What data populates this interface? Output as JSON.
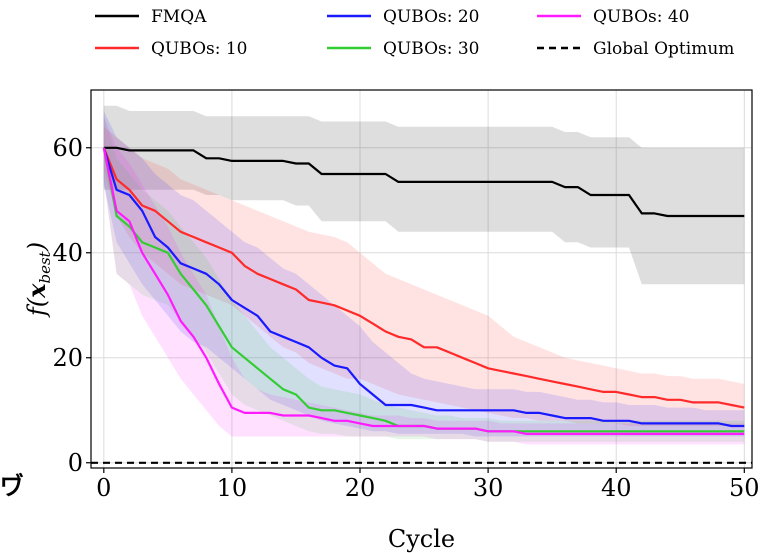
{
  "chart_data": {
    "type": "line",
    "xlabel": "Cycle",
    "ylabel": "f(x_best)",
    "xlim": [
      -1,
      50.6
    ],
    "ylim": [
      -1,
      71
    ],
    "xticks": [
      0,
      10,
      20,
      30,
      40,
      50
    ],
    "yticks": [
      0,
      20,
      40,
      60
    ],
    "grid": true,
    "legend_position": "top",
    "series": [
      {
        "name": "FMQA",
        "color": "#000000",
        "linestyle": "solid",
        "x": [
          0,
          1,
          2,
          3,
          4,
          5,
          6,
          7,
          8,
          9,
          10,
          11,
          12,
          13,
          14,
          15,
          16,
          17,
          18,
          19,
          20,
          21,
          22,
          23,
          24,
          25,
          26,
          27,
          28,
          29,
          30,
          31,
          32,
          33,
          34,
          35,
          36,
          37,
          38,
          39,
          40,
          41,
          42,
          43,
          44,
          45,
          46,
          47,
          48,
          49,
          50
        ],
        "y": [
          60,
          60,
          59.5,
          59.5,
          59.5,
          59.5,
          59.5,
          59.5,
          58,
          58,
          57.5,
          57.5,
          57.5,
          57.5,
          57.5,
          57,
          57,
          55,
          55,
          55,
          55,
          55,
          55,
          53.5,
          53.5,
          53.5,
          53.5,
          53.5,
          53.5,
          53.5,
          53.5,
          53.5,
          53.5,
          53.5,
          53.5,
          53.5,
          52.5,
          52.5,
          51,
          51,
          51,
          51,
          47.5,
          47.5,
          47,
          47,
          47,
          47,
          47,
          47,
          47
        ],
        "upper": [
          68,
          68,
          67,
          67,
          67,
          67,
          67,
          67,
          66,
          66,
          66,
          66,
          66,
          66,
          66,
          66,
          66,
          65,
          65,
          65,
          65,
          65,
          65,
          64,
          64,
          64,
          64,
          64,
          64,
          64,
          64,
          64,
          64,
          64,
          64,
          64,
          63,
          63,
          62,
          62,
          62,
          62,
          60,
          60,
          60,
          60,
          60,
          60,
          60,
          60,
          60
        ],
        "lower": [
          52,
          52,
          52,
          52,
          52,
          52,
          52,
          52,
          51,
          51,
          50,
          50,
          50,
          50,
          50,
          49,
          49,
          46,
          46,
          46,
          46,
          46,
          46,
          44,
          44,
          44,
          44,
          44,
          44,
          44,
          44,
          44,
          44,
          44,
          44,
          44,
          42,
          42,
          41,
          41,
          41,
          41,
          34,
          34,
          34,
          34,
          34,
          34,
          34,
          34,
          34
        ]
      },
      {
        "name": "QUBOs: 10",
        "color": "#ff2a2a",
        "linestyle": "solid",
        "x": [
          0,
          1,
          2,
          3,
          4,
          5,
          6,
          7,
          8,
          9,
          10,
          11,
          12,
          13,
          14,
          15,
          16,
          17,
          18,
          19,
          20,
          21,
          22,
          23,
          24,
          25,
          26,
          27,
          28,
          29,
          30,
          31,
          32,
          33,
          34,
          35,
          36,
          37,
          38,
          39,
          40,
          41,
          42,
          43,
          44,
          45,
          46,
          47,
          48,
          49,
          50
        ],
        "y": [
          60,
          54,
          52,
          49,
          48,
          46,
          44,
          43,
          42,
          41,
          40,
          37.5,
          36,
          35,
          34,
          33,
          31,
          30.5,
          30,
          29,
          28,
          26.5,
          25,
          24,
          23.5,
          22,
          22,
          21,
          20,
          19,
          18,
          17.5,
          17,
          16.5,
          16,
          15.5,
          15,
          14.5,
          14,
          13.5,
          13.5,
          13,
          12.5,
          12.5,
          12,
          12,
          11.5,
          11.5,
          11.5,
          11,
          10.5
        ],
        "upper": [
          64,
          62,
          60,
          58,
          57,
          56,
          54,
          53,
          52,
          51,
          50,
          49,
          48,
          47,
          46,
          45,
          44,
          43.5,
          43,
          42,
          40,
          38,
          36,
          35,
          34,
          33,
          32,
          31,
          30,
          29,
          28,
          26,
          24,
          23,
          22,
          21,
          20,
          19.5,
          19,
          18.5,
          18,
          17.5,
          17,
          17,
          16.5,
          16.5,
          16,
          16,
          16,
          15.5,
          15
        ],
        "lower": [
          56,
          47,
          43,
          40,
          38,
          36,
          34,
          33,
          32,
          31,
          30,
          28,
          26,
          24,
          22,
          21,
          19,
          18,
          17,
          16,
          16,
          15,
          14,
          13,
          12.5,
          12,
          11.5,
          11,
          10.5,
          10,
          9.5,
          9,
          8.5,
          8.5,
          8,
          8,
          8,
          7.5,
          7.5,
          7.5,
          7.5,
          7,
          7,
          7,
          7,
          7,
          7,
          7,
          7,
          7,
          7
        ]
      },
      {
        "name": "QUBOs: 20",
        "color": "#1a1aff",
        "linestyle": "solid",
        "x": [
          0,
          1,
          2,
          3,
          4,
          5,
          6,
          7,
          8,
          9,
          10,
          11,
          12,
          13,
          14,
          15,
          16,
          17,
          18,
          19,
          20,
          21,
          22,
          23,
          24,
          25,
          26,
          27,
          28,
          29,
          30,
          31,
          32,
          33,
          34,
          35,
          36,
          37,
          38,
          39,
          40,
          41,
          42,
          43,
          44,
          45,
          46,
          47,
          48,
          49,
          50
        ],
        "y": [
          60,
          52,
          51,
          48,
          43,
          41,
          38,
          37,
          36,
          34,
          31,
          29.5,
          28,
          25,
          24,
          23,
          22,
          20,
          18.5,
          18,
          15,
          13,
          11,
          11,
          11,
          10.5,
          10,
          10,
          10,
          10,
          10,
          10,
          10,
          9.5,
          9.5,
          9,
          8.5,
          8.5,
          8.5,
          8,
          8,
          8,
          7.5,
          7.5,
          7.5,
          7.5,
          7.5,
          7.5,
          7.5,
          7,
          7
        ],
        "upper": [
          67,
          62,
          60,
          58,
          55,
          53,
          51,
          50,
          48,
          46,
          44,
          42,
          41,
          39,
          37,
          36,
          34,
          32,
          30,
          28,
          26,
          23,
          21,
          19,
          17,
          16,
          15.5,
          15,
          14.5,
          14,
          14,
          14,
          14,
          13.5,
          13.5,
          13,
          12.5,
          12,
          12,
          11.5,
          11.5,
          11,
          11,
          11,
          10.5,
          10.5,
          10.5,
          10,
          10,
          10,
          10
        ],
        "lower": [
          53,
          42,
          38,
          34,
          31,
          28,
          25,
          23,
          22,
          20,
          18,
          16,
          14,
          12,
          11,
          10,
          9,
          8,
          7.5,
          7,
          6.5,
          6,
          6,
          5.5,
          5.5,
          5.5,
          5.5,
          5.5,
          5.5,
          5,
          5,
          5,
          5,
          5,
          5,
          5,
          5,
          5,
          5,
          5,
          5,
          5,
          5,
          5,
          5,
          5,
          5,
          5,
          5,
          5,
          5
        ]
      },
      {
        "name": "QUBOs: 30",
        "color": "#33cc33",
        "linestyle": "solid",
        "x": [
          0,
          1,
          2,
          3,
          4,
          5,
          6,
          7,
          8,
          9,
          10,
          11,
          12,
          13,
          14,
          15,
          16,
          17,
          18,
          19,
          20,
          21,
          22,
          23,
          24,
          25,
          26,
          27,
          28,
          29,
          30,
          31,
          32,
          33,
          34,
          35,
          36,
          37,
          38,
          39,
          40,
          41,
          42,
          43,
          44,
          45,
          46,
          47,
          48,
          49,
          50
        ],
        "y": [
          60,
          47,
          45,
          42,
          41,
          40,
          36,
          33,
          30,
          26,
          22,
          20,
          18,
          16,
          14,
          13,
          10.5,
          10,
          10,
          9.5,
          9,
          8.5,
          8,
          7,
          7,
          7,
          6.5,
          6.5,
          6.5,
          6.5,
          6,
          6,
          6,
          6,
          6,
          6,
          6,
          6,
          6,
          6,
          6,
          6,
          6,
          6,
          6,
          6,
          6,
          6,
          6,
          6,
          6
        ],
        "upper": [
          66,
          58,
          55,
          52,
          50,
          48,
          45,
          42,
          39,
          35,
          31,
          28,
          25,
          22,
          20,
          18,
          16,
          14.5,
          14,
          13.5,
          13,
          12,
          11,
          10.5,
          10,
          9.5,
          9,
          9,
          8.5,
          8.5,
          8.5,
          8,
          8,
          8,
          8,
          8,
          8,
          8,
          8,
          8,
          8,
          8,
          8,
          8,
          8,
          8,
          8,
          8,
          8,
          8,
          8
        ],
        "lower": [
          54,
          36,
          34,
          32,
          31,
          30,
          27,
          24,
          21,
          17,
          13,
          11,
          10,
          9,
          8,
          7,
          6,
          5.5,
          5.5,
          5,
          5,
          5,
          5,
          4.5,
          4.5,
          4.5,
          4.5,
          4.5,
          4.5,
          4.5,
          4,
          4,
          4,
          4,
          4,
          4,
          4,
          4,
          4,
          4,
          4,
          4,
          4,
          4,
          4,
          4,
          4,
          4,
          4,
          4,
          4
        ]
      },
      {
        "name": "QUBOs: 40",
        "color": "#ff1aff",
        "linestyle": "solid",
        "x": [
          0,
          1,
          2,
          3,
          4,
          5,
          6,
          7,
          8,
          9,
          10,
          11,
          12,
          13,
          14,
          15,
          16,
          17,
          18,
          19,
          20,
          21,
          22,
          23,
          24,
          25,
          26,
          27,
          28,
          29,
          30,
          31,
          32,
          33,
          34,
          35,
          36,
          37,
          38,
          39,
          40,
          41,
          42,
          43,
          44,
          45,
          46,
          47,
          48,
          49,
          50
        ],
        "y": [
          60,
          48,
          46,
          40,
          36,
          32,
          27,
          24,
          20,
          15,
          10.5,
          9.5,
          9.5,
          9.5,
          9,
          9,
          9,
          8.5,
          8,
          8,
          7.5,
          7,
          7,
          7,
          7,
          7,
          6.5,
          6.5,
          6.5,
          6.5,
          6,
          6,
          6,
          5.5,
          5.5,
          5.5,
          5.5,
          5.5,
          5.5,
          5.5,
          5.5,
          5.5,
          5.5,
          5.5,
          5.5,
          5.5,
          5.5,
          5.5,
          5.5,
          5.5,
          5.5
        ],
        "upper": [
          66,
          60,
          57,
          53,
          49,
          45,
          40,
          36,
          32,
          26,
          20,
          16,
          14,
          13,
          12.5,
          12,
          11.5,
          11,
          10.5,
          10,
          9.5,
          9,
          9,
          9,
          8.5,
          8.5,
          8,
          8,
          8,
          8,
          8,
          7.5,
          7.5,
          7.5,
          7.5,
          7.5,
          7.5,
          7.5,
          7.5,
          7.5,
          7.5,
          7.5,
          7.5,
          7.5,
          7.5,
          7.5,
          7.5,
          7.5,
          7.5,
          7.5,
          7.5
        ],
        "lower": [
          54,
          36,
          34,
          28,
          24,
          20,
          16,
          13,
          10,
          7,
          5,
          5,
          5,
          5,
          5,
          5,
          5,
          5,
          5,
          5,
          5,
          5,
          5,
          5,
          5,
          5,
          4.5,
          4.5,
          4.5,
          4.5,
          4,
          4,
          4,
          3.5,
          3.5,
          3.5,
          3.5,
          3.5,
          3.5,
          3.5,
          3.5,
          3.5,
          3.5,
          3.5,
          3.5,
          3.5,
          3.5,
          3.5,
          3.5,
          3.5,
          3.5
        ]
      },
      {
        "name": "Global Optimum",
        "color": "#000000",
        "linestyle": "dashed",
        "x": [
          -1,
          50.6
        ],
        "y": [
          0,
          0
        ]
      }
    ]
  },
  "stray_text": "ヷ"
}
